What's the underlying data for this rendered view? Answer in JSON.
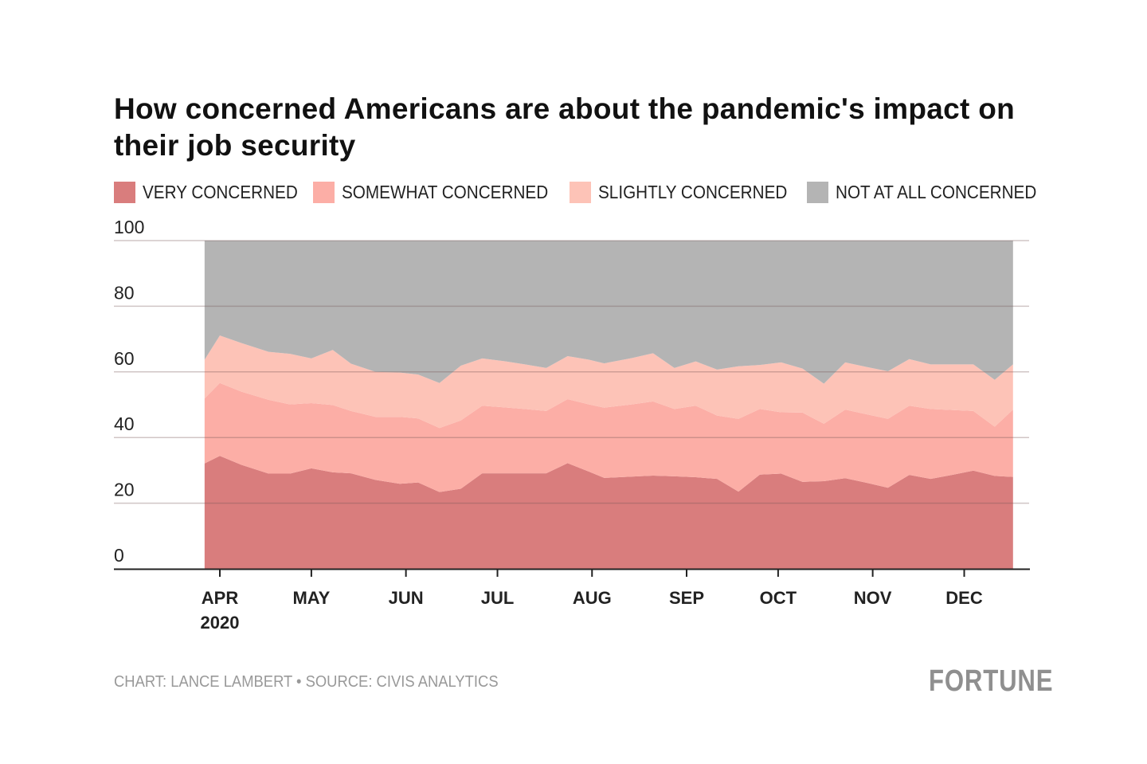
{
  "chart_data": {
    "type": "area",
    "stacked": true,
    "title": "How concerned Americans are about the pandemic's impact on their job security",
    "xlabel": "",
    "ylabel": "",
    "ylim": [
      0,
      100
    ],
    "yticks": [
      "0",
      "20",
      "40",
      "60",
      "80",
      "100"
    ],
    "xticks": [
      {
        "date": "2020-04-01",
        "label": "APR",
        "sublabel": "2020"
      },
      {
        "date": "2020-05-01",
        "label": "MAY"
      },
      {
        "date": "2020-06-01",
        "label": "JUN"
      },
      {
        "date": "2020-07-01",
        "label": "JUL"
      },
      {
        "date": "2020-08-01",
        "label": "AUG"
      },
      {
        "date": "2020-09-01",
        "label": "SEP"
      },
      {
        "date": "2020-10-01",
        "label": "OCT"
      },
      {
        "date": "2020-11-01",
        "label": "NOV"
      },
      {
        "date": "2020-12-01",
        "label": "DEC"
      }
    ],
    "grid": true,
    "legend_position": "top",
    "x": [
      "2020-03-27",
      "2020-04-01",
      "2020-04-08",
      "2020-04-17",
      "2020-04-24",
      "2020-05-01",
      "2020-05-08",
      "2020-05-14",
      "2020-05-22",
      "2020-05-30",
      "2020-06-05",
      "2020-06-12",
      "2020-06-19",
      "2020-06-26",
      "2020-07-03",
      "2020-07-10",
      "2020-07-17",
      "2020-07-24",
      "2020-07-31",
      "2020-08-05",
      "2020-08-14",
      "2020-08-21",
      "2020-08-28",
      "2020-09-04",
      "2020-09-11",
      "2020-09-18",
      "2020-09-25",
      "2020-10-02",
      "2020-10-09",
      "2020-10-16",
      "2020-10-23",
      "2020-10-30",
      "2020-11-06",
      "2020-11-13",
      "2020-11-20",
      "2020-11-27",
      "2020-12-04",
      "2020-12-11",
      "2020-12-17"
    ],
    "series": [
      {
        "name": "VERY CONCERNED",
        "color": "#d97d7d",
        "values": [
          32.1,
          34.4,
          31.7,
          29.0,
          29.0,
          30.6,
          29.4,
          29.1,
          27.1,
          25.9,
          26.3,
          23.4,
          24.4,
          29.1,
          29.1,
          29.1,
          29.1,
          32.2,
          29.6,
          27.7,
          28.1,
          28.4,
          28.2,
          27.9,
          27.4,
          23.5,
          28.7,
          29.0,
          26.5,
          26.7,
          27.6,
          26.2,
          24.7,
          28.6,
          27.4,
          28.6,
          29.9,
          28.3,
          28.0
        ]
      },
      {
        "name": "SOMEWHAT CONCERNED",
        "color": "#fcaea6",
        "values": [
          19.8,
          22.2,
          22.3,
          22.5,
          21.1,
          19.9,
          20.5,
          19.0,
          19.2,
          20.4,
          19.5,
          19.5,
          20.8,
          20.6,
          20.1,
          19.6,
          19.0,
          19.5,
          20.5,
          21.4,
          22.0,
          22.6,
          20.5,
          21.8,
          19.3,
          22.2,
          20.0,
          18.7,
          21.1,
          17.5,
          20.9,
          20.9,
          21.0,
          21.1,
          21.3,
          19.8,
          18.2,
          15.0,
          20.5
        ]
      },
      {
        "name": "SLIGHTLY CONCERNED",
        "color": "#fdc3b7",
        "values": [
          11.8,
          14.5,
          14.8,
          14.6,
          15.4,
          13.6,
          16.8,
          14.4,
          13.7,
          13.5,
          13.4,
          13.7,
          16.7,
          14.4,
          14.1,
          13.6,
          13.1,
          13.1,
          13.6,
          13.5,
          14.1,
          14.7,
          12.5,
          13.5,
          14.0,
          16.0,
          13.4,
          15.2,
          13.4,
          12.2,
          14.4,
          14.4,
          14.5,
          14.2,
          13.6,
          13.9,
          14.2,
          14.3,
          13.8
        ]
      },
      {
        "name": "NOT AT ALL CONCERNED",
        "color": "#b4b4b4",
        "values": [
          36.3,
          28.9,
          31.2,
          33.9,
          34.5,
          35.9,
          33.3,
          37.5,
          40.0,
          40.2,
          40.8,
          43.4,
          38.1,
          35.9,
          36.7,
          37.7,
          38.8,
          35.2,
          36.3,
          37.4,
          35.8,
          34.3,
          38.8,
          36.8,
          39.3,
          38.3,
          37.9,
          37.1,
          39.0,
          43.6,
          37.1,
          38.5,
          39.8,
          36.1,
          37.7,
          37.7,
          37.7,
          42.4,
          37.7
        ]
      }
    ]
  },
  "footer": {
    "source": "CHART: LANCE LAMBERT • SOURCE: CIVIS ANALYTICS",
    "logo": "FORTUNE"
  }
}
